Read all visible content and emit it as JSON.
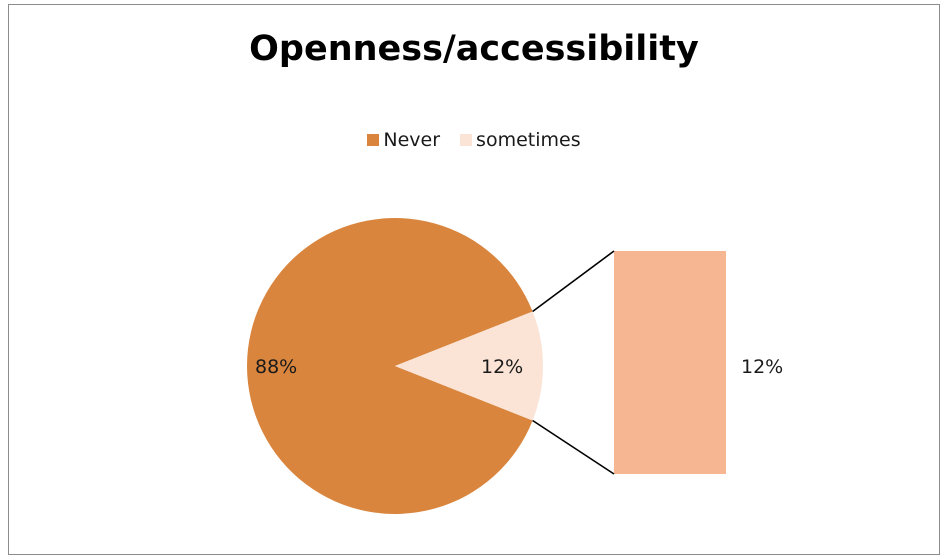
{
  "chart_data": {
    "type": "pie",
    "subtype": "pie-of-pie",
    "title": "Openness/accessibility",
    "categories": [
      "Never",
      "sometimes"
    ],
    "values": [
      88,
      12
    ],
    "data_labels": [
      "88%",
      "12%"
    ],
    "secondary_bar_label": "12%",
    "legend_position": "top",
    "colors": [
      "#d9853d",
      "#fbe4d6"
    ],
    "secondary_color": "#f7b692"
  }
}
